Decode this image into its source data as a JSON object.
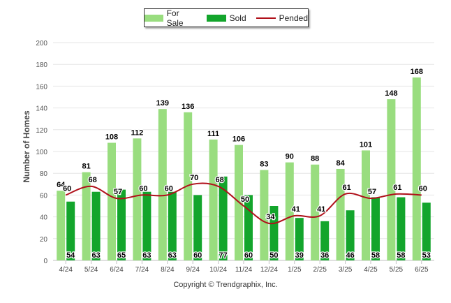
{
  "copyright": "Copyright © Trendgraphix, Inc.",
  "colors": {
    "for_sale": "#99dd7f",
    "sold": "#13a52c",
    "pended": "#b0101a",
    "grid": "#e6e6e6"
  },
  "chart_data": {
    "type": "bar",
    "title": "",
    "xlabel": "",
    "ylabel": "Number of Homes",
    "ylim": [
      0,
      200
    ],
    "yticks": [
      0,
      20,
      40,
      60,
      80,
      100,
      120,
      140,
      160,
      180,
      200
    ],
    "grid": true,
    "legend_position": "top-center",
    "categories": [
      "4/24",
      "5/24",
      "6/24",
      "7/24",
      "8/24",
      "9/24",
      "10/24",
      "11/24",
      "12/24",
      "1/25",
      "2/25",
      "3/25",
      "4/25",
      "5/25",
      "6/25"
    ],
    "series": [
      {
        "name": "For Sale",
        "type": "bar",
        "values": [
          64,
          81,
          108,
          112,
          139,
          136,
          111,
          106,
          83,
          90,
          88,
          84,
          101,
          148,
          168
        ]
      },
      {
        "name": "Sold",
        "type": "bar",
        "values": [
          54,
          63,
          65,
          63,
          63,
          60,
          77,
          60,
          50,
          39,
          36,
          46,
          58,
          58,
          53
        ]
      },
      {
        "name": "Pended",
        "type": "line",
        "values": [
          60,
          68,
          57,
          60,
          60,
          70,
          68,
          50,
          34,
          41,
          41,
          61,
          57,
          61,
          60
        ]
      }
    ]
  }
}
